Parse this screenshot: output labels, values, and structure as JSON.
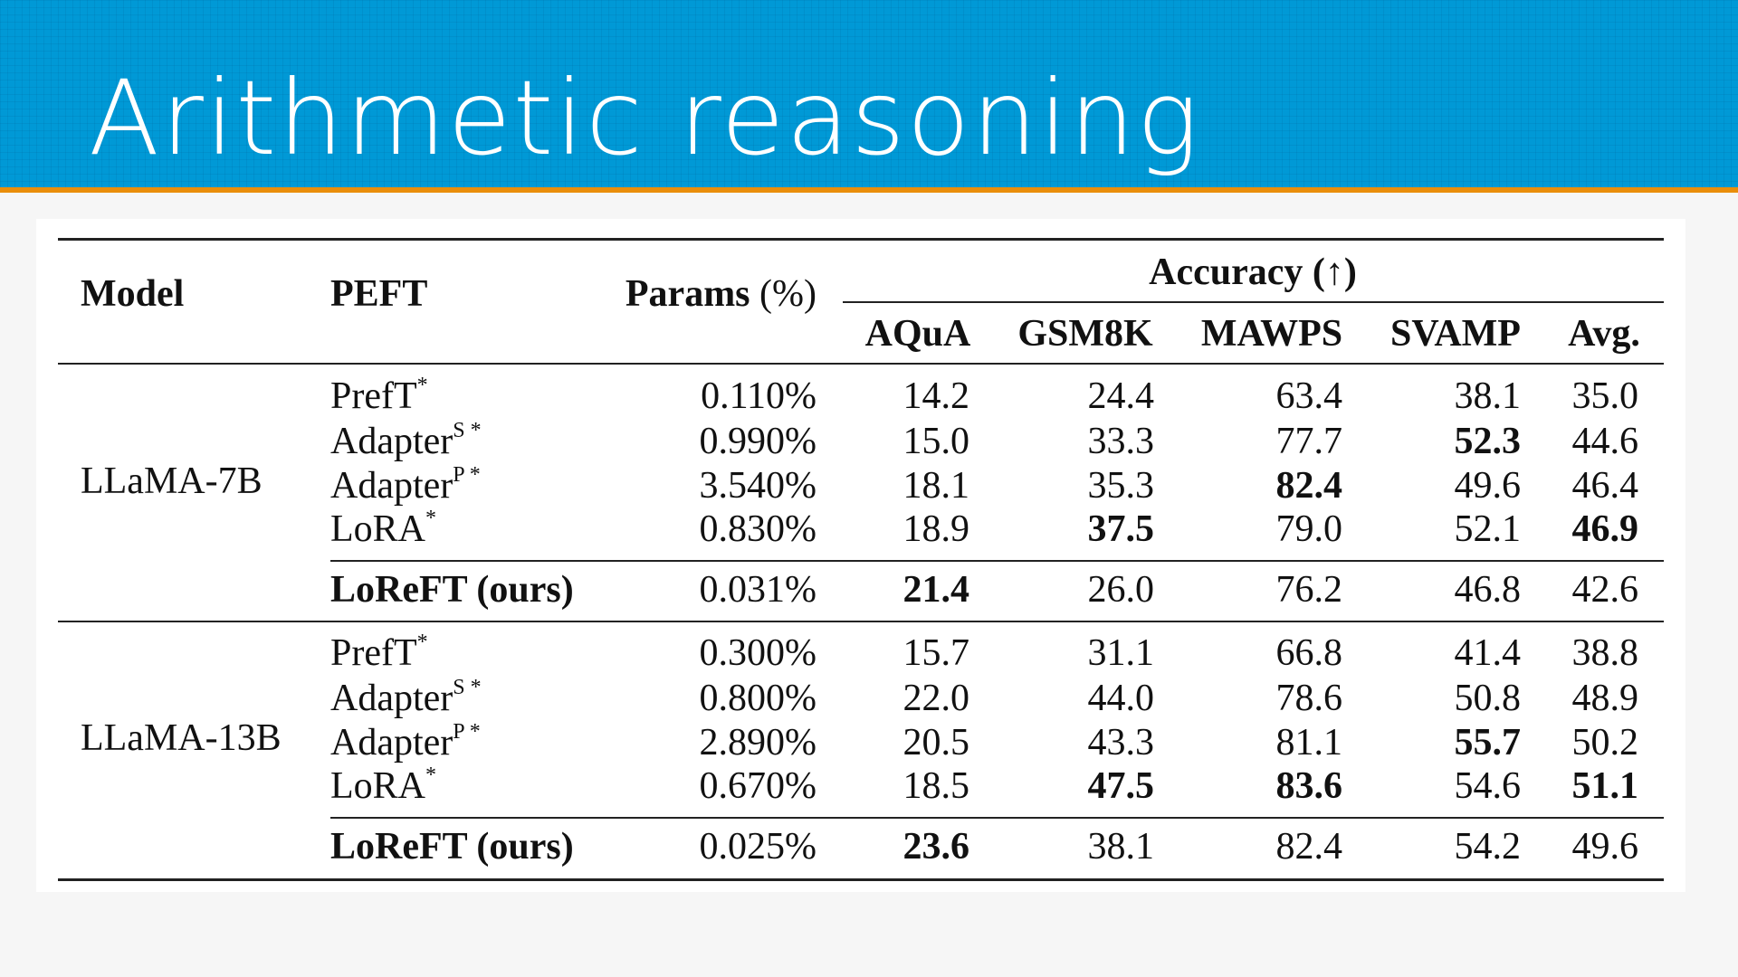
{
  "slide": {
    "title": "Arithmetic reasoning"
  },
  "table": {
    "headers": {
      "model": "Model",
      "peft": "PEFT",
      "params": "Params (%)",
      "accuracy": "Accuracy (↑)",
      "columns": [
        "AQuA",
        "GSM8K",
        "MAWPS",
        "SVAMP",
        "Avg."
      ]
    },
    "groups": [
      {
        "model": "LLaMA-7B",
        "rows": [
          {
            "peft": "PrefT",
            "sup": "*",
            "params": "0.110%",
            "values": [
              "14.2",
              "24.4",
              "63.4",
              "38.1",
              "35.0"
            ],
            "bold": [
              false,
              false,
              false,
              false,
              false
            ]
          },
          {
            "peft": "Adapter",
            "sup": "S *",
            "params": "0.990%",
            "values": [
              "15.0",
              "33.3",
              "77.7",
              "52.3",
              "44.6"
            ],
            "bold": [
              false,
              false,
              false,
              true,
              false
            ]
          },
          {
            "peft": "Adapter",
            "sup": "P *",
            "params": "3.540%",
            "values": [
              "18.1",
              "35.3",
              "82.4",
              "49.6",
              "46.4"
            ],
            "bold": [
              false,
              false,
              true,
              false,
              false
            ]
          },
          {
            "peft": "LoRA",
            "sup": "*",
            "params": "0.830%",
            "values": [
              "18.9",
              "37.5",
              "79.0",
              "52.1",
              "46.9"
            ],
            "bold": [
              false,
              true,
              false,
              false,
              true
            ]
          },
          {
            "peft": "LoReFT (ours)",
            "sup": "",
            "params": "0.031%",
            "values": [
              "21.4",
              "26.0",
              "76.2",
              "46.8",
              "42.6"
            ],
            "bold": [
              true,
              false,
              false,
              false,
              false
            ],
            "ours": true
          }
        ]
      },
      {
        "model": "LLaMA-13B",
        "rows": [
          {
            "peft": "PrefT",
            "sup": "*",
            "params": "0.300%",
            "values": [
              "15.7",
              "31.1",
              "66.8",
              "41.4",
              "38.8"
            ],
            "bold": [
              false,
              false,
              false,
              false,
              false
            ]
          },
          {
            "peft": "Adapter",
            "sup": "S *",
            "params": "0.800%",
            "values": [
              "22.0",
              "44.0",
              "78.6",
              "50.8",
              "48.9"
            ],
            "bold": [
              false,
              false,
              false,
              false,
              false
            ]
          },
          {
            "peft": "Adapter",
            "sup": "P *",
            "params": "2.890%",
            "values": [
              "20.5",
              "43.3",
              "81.1",
              "55.7",
              "50.2"
            ],
            "bold": [
              false,
              false,
              false,
              true,
              false
            ]
          },
          {
            "peft": "LoRA",
            "sup": "*",
            "params": "0.670%",
            "values": [
              "18.5",
              "47.5",
              "83.6",
              "54.6",
              "51.1"
            ],
            "bold": [
              false,
              true,
              true,
              false,
              true
            ]
          },
          {
            "peft": "LoReFT (ours)",
            "sup": "",
            "params": "0.025%",
            "values": [
              "23.6",
              "38.1",
              "82.4",
              "54.2",
              "49.6"
            ],
            "bold": [
              true,
              false,
              false,
              false,
              false
            ],
            "ours": true
          }
        ]
      }
    ]
  }
}
